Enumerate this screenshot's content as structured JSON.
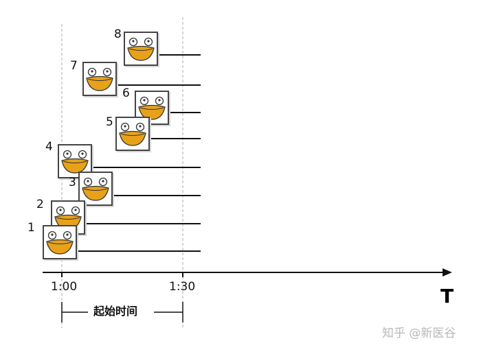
{
  "items": [
    {
      "n": "1"
    },
    {
      "n": "2"
    },
    {
      "n": "3"
    },
    {
      "n": "4"
    },
    {
      "n": "5"
    },
    {
      "n": "6"
    },
    {
      "n": "7"
    },
    {
      "n": "8"
    }
  ],
  "axis": {
    "start_tick": "1:00",
    "end_tick": "1:30",
    "axis_letter": "T"
  },
  "bracket": {
    "label": "起始时间"
  },
  "watermark": "知乎 @新医谷",
  "colors": {
    "frog_mouth": "#E8A21A",
    "frame": "#444444",
    "line": "#111111",
    "guide": "#aaaaaa"
  }
}
